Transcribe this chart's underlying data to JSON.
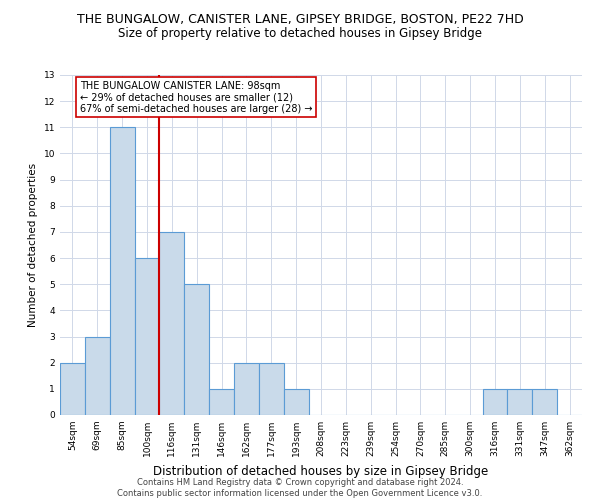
{
  "title": "THE BUNGALOW, CANISTER LANE, GIPSEY BRIDGE, BOSTON, PE22 7HD",
  "subtitle": "Size of property relative to detached houses in Gipsey Bridge",
  "xlabel": "Distribution of detached houses by size in Gipsey Bridge",
  "ylabel": "Number of detached properties",
  "footer_line1": "Contains HM Land Registry data © Crown copyright and database right 2024.",
  "footer_line2": "Contains public sector information licensed under the Open Government Licence v3.0.",
  "categories": [
    "54sqm",
    "69sqm",
    "85sqm",
    "100sqm",
    "116sqm",
    "131sqm",
    "146sqm",
    "162sqm",
    "177sqm",
    "193sqm",
    "208sqm",
    "223sqm",
    "239sqm",
    "254sqm",
    "270sqm",
    "285sqm",
    "300sqm",
    "316sqm",
    "331sqm",
    "347sqm",
    "362sqm"
  ],
  "values": [
    2,
    3,
    11,
    6,
    7,
    5,
    1,
    2,
    2,
    1,
    0,
    0,
    0,
    0,
    0,
    0,
    0,
    1,
    1,
    1,
    0
  ],
  "bar_color": "#c9daea",
  "bar_edge_color": "#5b9bd5",
  "bar_edge_width": 0.8,
  "red_line_x": 3.5,
  "red_line_color": "#cc0000",
  "annotation_text": "THE BUNGALOW CANISTER LANE: 98sqm\n← 29% of detached houses are smaller (12)\n67% of semi-detached houses are larger (28) →",
  "annotation_box_color": "#ffffff",
  "annotation_box_edge": "#cc0000",
  "ylim": [
    0,
    13
  ],
  "yticks": [
    0,
    1,
    2,
    3,
    4,
    5,
    6,
    7,
    8,
    9,
    10,
    11,
    12,
    13
  ],
  "bg_color": "#ffffff",
  "grid_color": "#d0d8e8",
  "title_fontsize": 9,
  "subtitle_fontsize": 8.5,
  "xlabel_fontsize": 8.5,
  "ylabel_fontsize": 7.5,
  "tick_fontsize": 6.5,
  "annotation_fontsize": 7,
  "footer_fontsize": 6
}
